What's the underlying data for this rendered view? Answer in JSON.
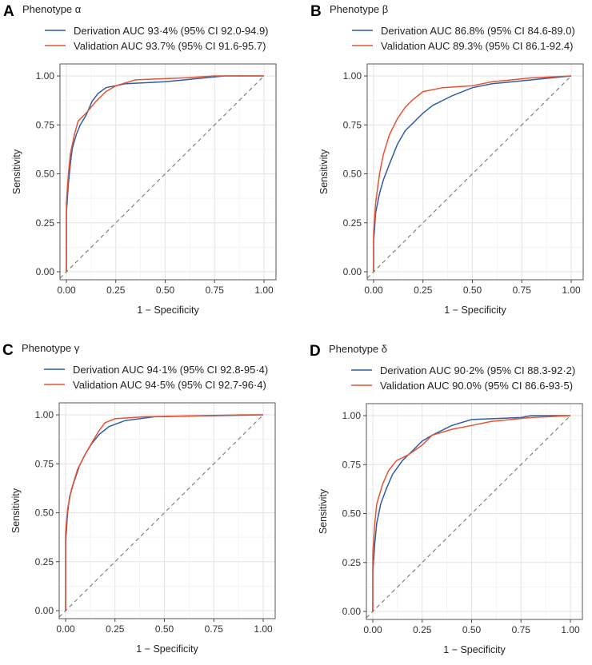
{
  "chart_data": [
    {
      "type": "line",
      "letter": "A",
      "title": "Phenotype α",
      "xlabel": "1 − Specificity",
      "ylabel": "Sensitivity",
      "xlim": [
        0,
        1
      ],
      "ylim": [
        0,
        1
      ],
      "ticks": [
        "0.00",
        "0.25",
        "0.50",
        "0.75",
        "1.00"
      ],
      "grid": true,
      "legend": "top",
      "series": [
        {
          "name": "Derivation AUC 93·4% (95% CI 92.0-94.9)",
          "color": "#2f5ca8",
          "points": [
            [
              0,
              0
            ],
            [
              0,
              0.3
            ],
            [
              0.01,
              0.45
            ],
            [
              0.02,
              0.55
            ],
            [
              0.03,
              0.63
            ],
            [
              0.05,
              0.7
            ],
            [
              0.07,
              0.75
            ],
            [
              0.1,
              0.8
            ],
            [
              0.13,
              0.87
            ],
            [
              0.16,
              0.91
            ],
            [
              0.2,
              0.94
            ],
            [
              0.3,
              0.96
            ],
            [
              0.5,
              0.97
            ],
            [
              0.6,
              0.98
            ],
            [
              0.8,
              1
            ],
            [
              1,
              1
            ]
          ]
        },
        {
          "name": "Validation AUC 93.7% (95% CI 91.6-95.7)",
          "color": "#e8532f",
          "points": [
            [
              0,
              0
            ],
            [
              0,
              0.35
            ],
            [
              0.01,
              0.5
            ],
            [
              0.02,
              0.6
            ],
            [
              0.04,
              0.7
            ],
            [
              0.06,
              0.77
            ],
            [
              0.1,
              0.81
            ],
            [
              0.15,
              0.87
            ],
            [
              0.2,
              0.92
            ],
            [
              0.25,
              0.95
            ],
            [
              0.35,
              0.98
            ],
            [
              0.6,
              0.99
            ],
            [
              0.75,
              1
            ],
            [
              1,
              1
            ]
          ]
        }
      ]
    },
    {
      "type": "line",
      "letter": "B",
      "title": "Phenotype β",
      "xlabel": "1 − Specificity",
      "ylabel": "Sensitivity",
      "xlim": [
        0,
        1
      ],
      "ylim": [
        0,
        1
      ],
      "ticks": [
        "0.00",
        "0.25",
        "0.50",
        "0.75",
        "1.00"
      ],
      "grid": true,
      "legend": "top",
      "series": [
        {
          "name": "Derivation  AUC 86.8% (95% CI 84.6-89.0)",
          "color": "#2f5ca8",
          "points": [
            [
              0,
              0
            ],
            [
              0,
              0.15
            ],
            [
              0.01,
              0.3
            ],
            [
              0.03,
              0.4
            ],
            [
              0.05,
              0.47
            ],
            [
              0.08,
              0.55
            ],
            [
              0.12,
              0.65
            ],
            [
              0.16,
              0.72
            ],
            [
              0.2,
              0.76
            ],
            [
              0.25,
              0.81
            ],
            [
              0.3,
              0.85
            ],
            [
              0.4,
              0.9
            ],
            [
              0.5,
              0.94
            ],
            [
              0.6,
              0.96
            ],
            [
              0.8,
              0.98
            ],
            [
              1,
              1
            ]
          ]
        },
        {
          "name": "Validation AUC 89.3% (95% CI 86.1-92.4)",
          "color": "#e8532f",
          "points": [
            [
              0,
              0
            ],
            [
              0,
              0.2
            ],
            [
              0.01,
              0.35
            ],
            [
              0.03,
              0.5
            ],
            [
              0.05,
              0.6
            ],
            [
              0.08,
              0.7
            ],
            [
              0.12,
              0.78
            ],
            [
              0.16,
              0.84
            ],
            [
              0.2,
              0.88
            ],
            [
              0.25,
              0.92
            ],
            [
              0.35,
              0.94
            ],
            [
              0.5,
              0.95
            ],
            [
              0.6,
              0.97
            ],
            [
              0.8,
              0.99
            ],
            [
              1,
              1
            ]
          ]
        }
      ]
    },
    {
      "type": "line",
      "letter": "C",
      "title": "Phenotype γ",
      "xlabel": "1 − Specificity",
      "ylabel": "Sensitivity",
      "xlim": [
        0,
        1
      ],
      "ylim": [
        0,
        1
      ],
      "ticks": [
        "0.00",
        "0.25",
        "0.50",
        "0.75",
        "1.00"
      ],
      "grid": true,
      "legend": "top",
      "series": [
        {
          "name": "Derivation  AUC 94·1% (95% CI 92.8-95·4)",
          "color": "#2f5ca8",
          "points": [
            [
              0,
              0
            ],
            [
              0,
              0.35
            ],
            [
              0.01,
              0.5
            ],
            [
              0.02,
              0.58
            ],
            [
              0.04,
              0.65
            ],
            [
              0.07,
              0.74
            ],
            [
              0.1,
              0.8
            ],
            [
              0.13,
              0.85
            ],
            [
              0.17,
              0.9
            ],
            [
              0.22,
              0.94
            ],
            [
              0.3,
              0.97
            ],
            [
              0.45,
              0.99
            ],
            [
              1,
              1
            ]
          ]
        },
        {
          "name": "Validation AUC 94·5% (95% CI 92.7-96·4)",
          "color": "#e8532f",
          "points": [
            [
              0,
              0
            ],
            [
              0,
              0.4
            ],
            [
              0.01,
              0.52
            ],
            [
              0.03,
              0.62
            ],
            [
              0.06,
              0.72
            ],
            [
              0.1,
              0.8
            ],
            [
              0.14,
              0.87
            ],
            [
              0.17,
              0.92
            ],
            [
              0.2,
              0.96
            ],
            [
              0.25,
              0.98
            ],
            [
              0.4,
              0.99
            ],
            [
              0.9,
              1
            ],
            [
              1,
              1
            ]
          ]
        }
      ]
    },
    {
      "type": "line",
      "letter": "D",
      "title": "Phenotype δ",
      "xlabel": "1 − Specificity",
      "ylabel": "Sensitivity",
      "xlim": [
        0,
        1
      ],
      "ylim": [
        0,
        1
      ],
      "ticks": [
        "0.00",
        "0.25",
        "0.50",
        "0.75",
        "1.00"
      ],
      "grid": true,
      "legend": "top",
      "series": [
        {
          "name": "Derivation  AUC 90·2% (95% CI 88.3-92·2)",
          "color": "#2f5ca8",
          "points": [
            [
              0,
              0
            ],
            [
              0,
              0.2
            ],
            [
              0.01,
              0.35
            ],
            [
              0.02,
              0.45
            ],
            [
              0.04,
              0.55
            ],
            [
              0.07,
              0.63
            ],
            [
              0.1,
              0.7
            ],
            [
              0.15,
              0.77
            ],
            [
              0.2,
              0.82
            ],
            [
              0.25,
              0.87
            ],
            [
              0.3,
              0.9
            ],
            [
              0.4,
              0.95
            ],
            [
              0.5,
              0.98
            ],
            [
              0.75,
              0.99
            ],
            [
              0.8,
              1
            ],
            [
              1,
              1
            ]
          ]
        },
        {
          "name": "Validation AUC 90.0% (95% CI 86.6-93·5)",
          "color": "#e8532f",
          "points": [
            [
              0,
              0
            ],
            [
              0,
              0.3
            ],
            [
              0.01,
              0.45
            ],
            [
              0.02,
              0.55
            ],
            [
              0.05,
              0.65
            ],
            [
              0.08,
              0.72
            ],
            [
              0.12,
              0.77
            ],
            [
              0.18,
              0.8
            ],
            [
              0.25,
              0.85
            ],
            [
              0.3,
              0.9
            ],
            [
              0.4,
              0.93
            ],
            [
              0.5,
              0.95
            ],
            [
              0.6,
              0.97
            ],
            [
              0.8,
              0.99
            ],
            [
              1,
              1
            ]
          ]
        }
      ]
    }
  ]
}
